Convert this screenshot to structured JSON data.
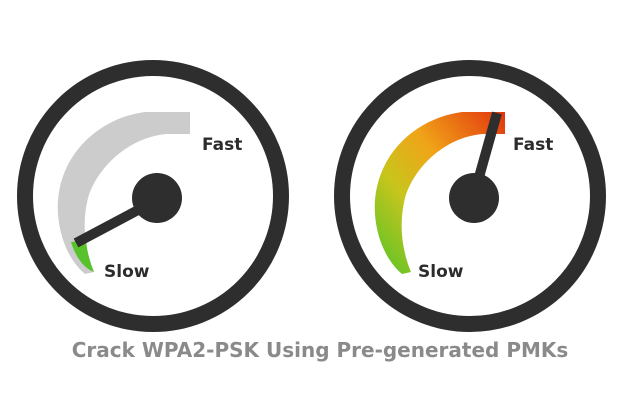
{
  "gauges": [
    {
      "label_fast": "Fast",
      "label_slow": "Slow",
      "level": 0.08,
      "needle": "at the Slow end",
      "fill_color": "#58c22c",
      "track_color": "#cccccc"
    },
    {
      "label_fast": "Fast",
      "label_slow": "Slow",
      "level": 1.0,
      "needle": "at the Fast end",
      "fill_gradient": [
        "#4fc32a",
        "#e9c21e",
        "#f07e16",
        "#e2340e"
      ]
    }
  ],
  "caption": "Crack WPA2-PSK Using Pre-generated PMKs",
  "colors": {
    "ring": "#2e2e2e",
    "hub": "#2e2e2e",
    "caption": "#8a8a8a"
  }
}
